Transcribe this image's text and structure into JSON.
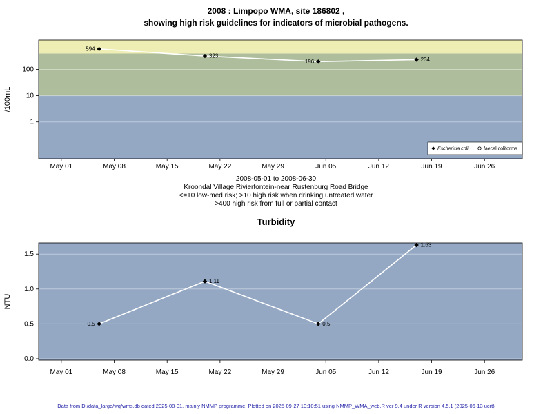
{
  "header": {
    "title_line1": "2008 : Limpopo WMA, site 186802 ,",
    "title_line2": "showing high risk guidelines for indicators of microbial pathogens."
  },
  "caption": {
    "line1": "2008-05-01 to 2008-06-30",
    "line2": "Kroondal Village Rivierfontein-near Rustenburg Road Bridge",
    "line3": "<=10 low-med risk; >10 high risk when drinking untreated water",
    "line4": ">400 high risk from full or partial contact"
  },
  "footer": "Data from D:/data_large/wq/wms.db dated 2025-08-01, mainly NMMP programme. Plotted on 2025-09-27 10:10:51 using NMMP_WMA_web.R ver 9.4 under R version 4.5.1 (2025-06-13 ucrt)",
  "chart_data": [
    {
      "type": "line",
      "title": "2008 : Limpopo WMA, site 186802 , showing high risk guidelines for indicators of microbial pathogens.",
      "ylabel": "/100mL",
      "yscale": "log",
      "x_start": "2008-05-01",
      "x_domain_days": [
        -3,
        61
      ],
      "y_domain": [
        0.04,
        1300
      ],
      "x_ticks": [
        {
          "date": "2008-05-01",
          "label": "May 01"
        },
        {
          "date": "2008-05-08",
          "label": "May 08"
        },
        {
          "date": "2008-05-15",
          "label": "May 15"
        },
        {
          "date": "2008-05-22",
          "label": "May 22"
        },
        {
          "date": "2008-05-29",
          "label": "May 29"
        },
        {
          "date": "2008-06-05",
          "label": "Jun 05"
        },
        {
          "date": "2008-06-12",
          "label": "Jun 12"
        },
        {
          "date": "2008-06-19",
          "label": "Jun 19"
        },
        {
          "date": "2008-06-26",
          "label": "Jun 26"
        }
      ],
      "y_ticks": [
        {
          "value": 1,
          "label": "1"
        },
        {
          "value": 10,
          "label": "10"
        },
        {
          "value": 100,
          "label": "100"
        }
      ],
      "bands": [
        {
          "from": 400,
          "to": 1300,
          "color": "#eeeeb4",
          "meaning": ">400 high risk from full or partial contact"
        },
        {
          "from": 10,
          "to": 400,
          "color": "#aebe9c",
          "meaning": ">10 high risk when drinking untreated water"
        },
        {
          "from": 0.04,
          "to": 10,
          "color": "#94a8c4",
          "meaning": "<=10 low-med risk"
        }
      ],
      "series": [
        {
          "name": "Eschericia coli",
          "marker": "diamond",
          "points": [
            {
              "date": "2008-05-06",
              "value": 594,
              "label": "594",
              "label_side": "left"
            },
            {
              "date": "2008-05-20",
              "value": 323,
              "label": "323",
              "label_side": "right"
            },
            {
              "date": "2008-06-04",
              "value": 196,
              "label": "196",
              "label_side": "left"
            },
            {
              "date": "2008-06-17",
              "value": 234,
              "label": "234",
              "label_side": "right"
            }
          ]
        },
        {
          "name": "faecal coliforms",
          "marker": "circle",
          "points": []
        }
      ],
      "legend": [
        {
          "marker": "diamond",
          "label": "Eschericia coli",
          "italic": true
        },
        {
          "marker": "circle",
          "label": "faecal coliforms",
          "italic": false
        }
      ],
      "legend_position": "bottom-right"
    },
    {
      "type": "line",
      "title": "Turbidity",
      "ylabel": "NTU",
      "yscale": "linear",
      "x_start": "2008-05-01",
      "x_domain_days": [
        -3,
        61
      ],
      "y_domain": [
        -0.02,
        1.66
      ],
      "background": "#94a8c4",
      "x_ticks": [
        {
          "date": "2008-05-01",
          "label": "May 01"
        },
        {
          "date": "2008-05-08",
          "label": "May 08"
        },
        {
          "date": "2008-05-15",
          "label": "May 15"
        },
        {
          "date": "2008-05-22",
          "label": "May 22"
        },
        {
          "date": "2008-05-29",
          "label": "May 29"
        },
        {
          "date": "2008-06-05",
          "label": "Jun 05"
        },
        {
          "date": "2008-06-12",
          "label": "Jun 12"
        },
        {
          "date": "2008-06-19",
          "label": "Jun 19"
        },
        {
          "date": "2008-06-26",
          "label": "Jun 26"
        }
      ],
      "y_ticks": [
        {
          "value": 0,
          "label": "0.0"
        },
        {
          "value": 0.5,
          "label": "0.5"
        },
        {
          "value": 1,
          "label": "1.0"
        },
        {
          "value": 1.5,
          "label": "1.5"
        }
      ],
      "series": [
        {
          "name": "Turbidity",
          "marker": "diamond",
          "points": [
            {
              "date": "2008-05-06",
              "value": 0.5,
              "label": "0.5",
              "label_side": "left"
            },
            {
              "date": "2008-05-20",
              "value": 1.11,
              "label": "1.11",
              "label_side": "right"
            },
            {
              "date": "2008-06-04",
              "value": 0.5,
              "label": "0.5",
              "label_side": "right"
            },
            {
              "date": "2008-06-17",
              "value": 1.63,
              "label": "1.63",
              "label_side": "right"
            }
          ]
        }
      ]
    }
  ]
}
